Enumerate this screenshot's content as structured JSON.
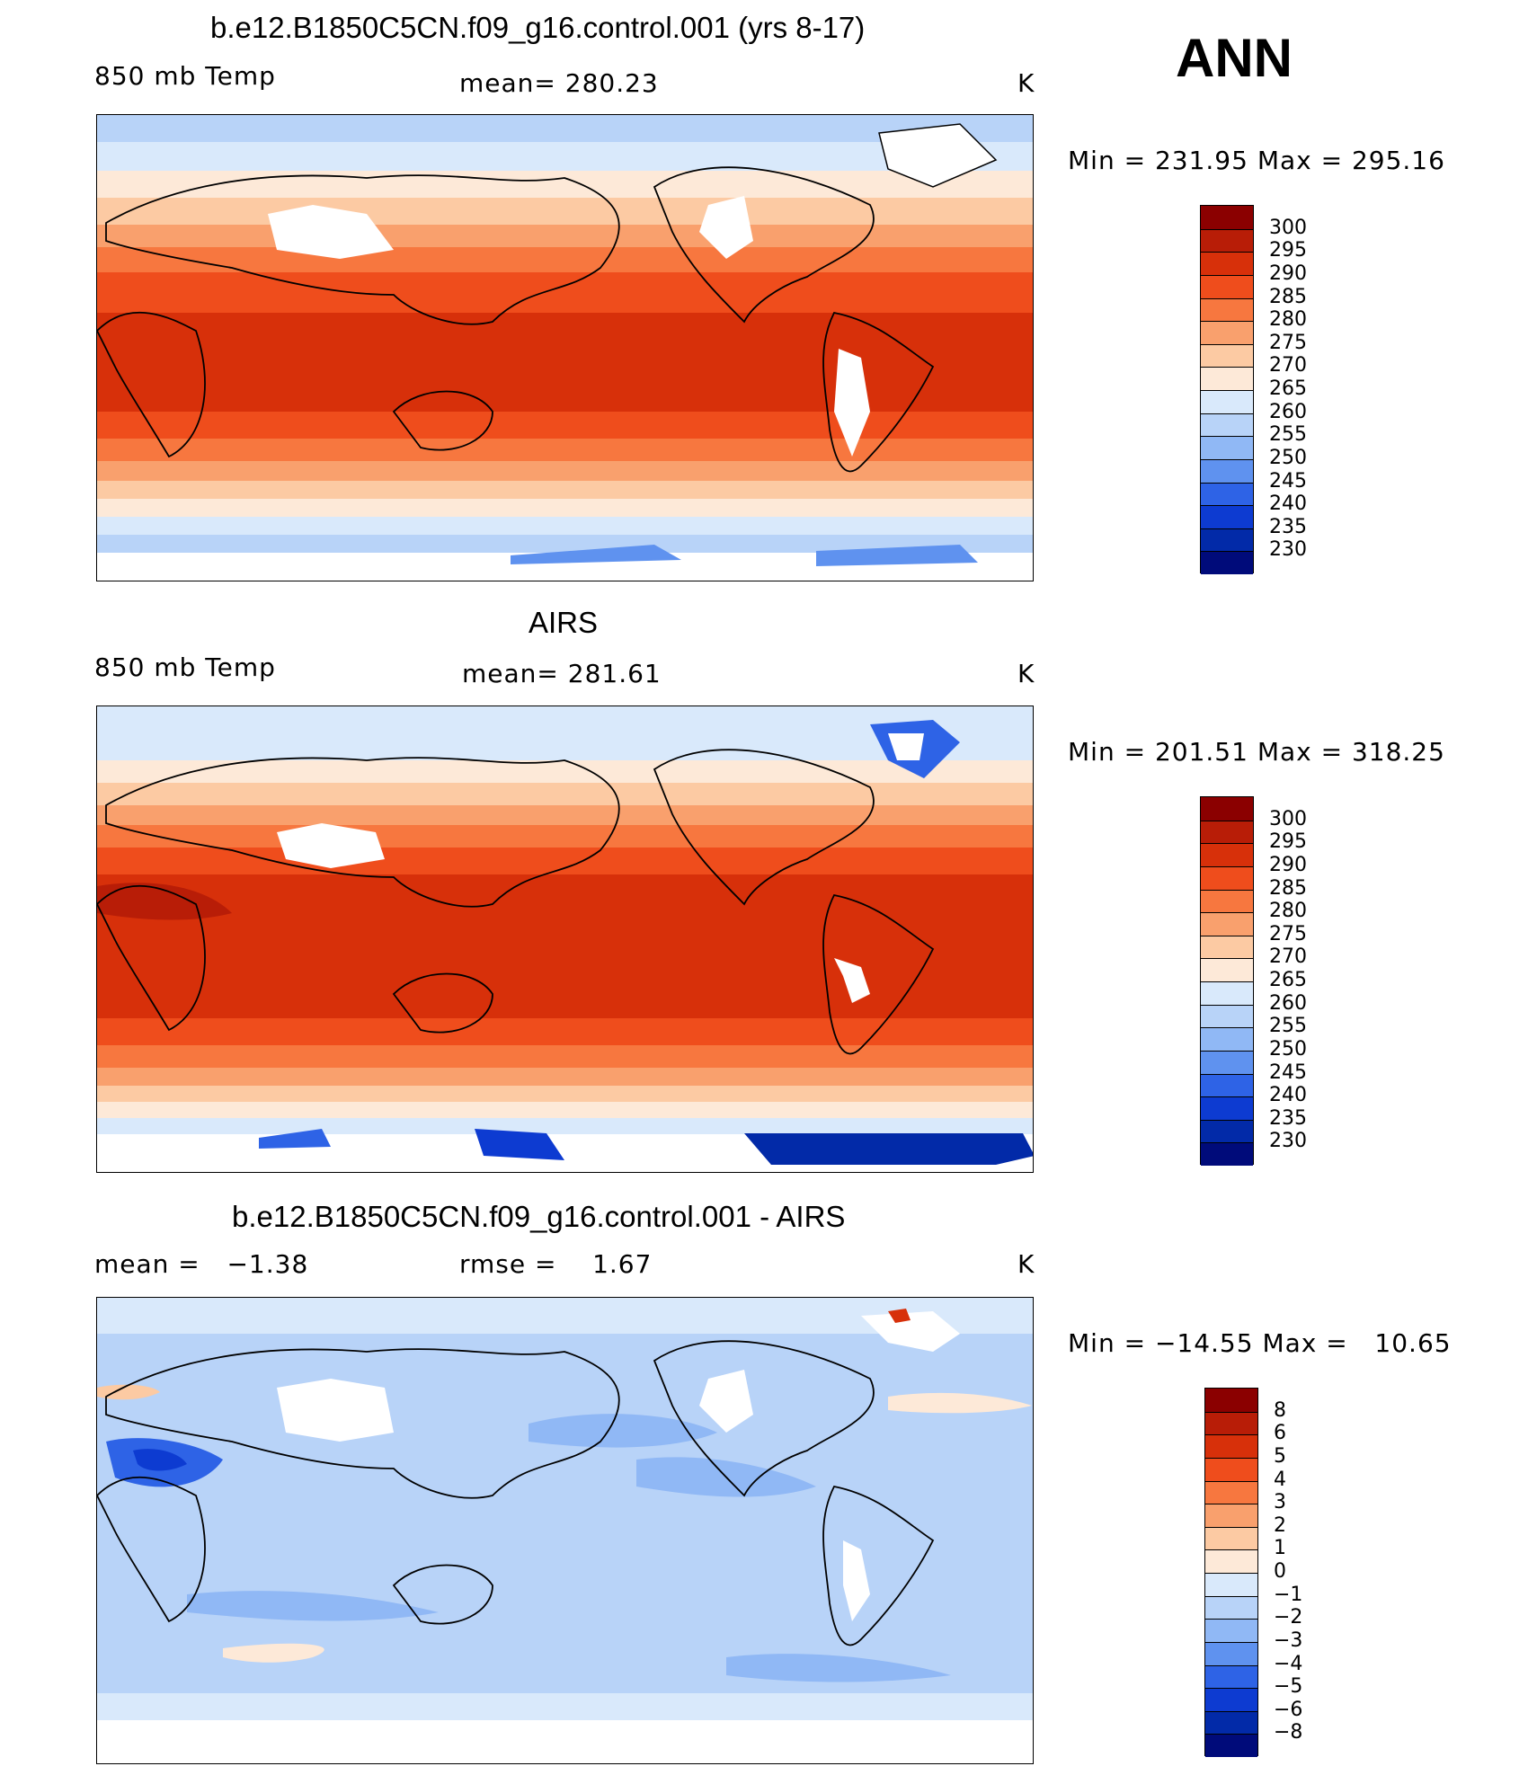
{
  "season": "ANN",
  "panels": [
    {
      "title": "b.e12.B1850C5CN.f09_g16.control.001 (yrs 8-17)",
      "left_label": "850 mb Temp",
      "center_label": "mean= 280.23",
      "units": "K",
      "minmax": "Min = 231.95 Max = 295.16",
      "colorbar": {
        "labels": [
          "300",
          "295",
          "290",
          "285",
          "280",
          "275",
          "270",
          "265",
          "260",
          "255",
          "250",
          "245",
          "240",
          "235",
          "230"
        ],
        "colors": [
          "#8b0000",
          "#b81d07",
          "#d7300a",
          "#ef4d1c",
          "#f7773f",
          "#f9a06d",
          "#fccaa3",
          "#fde9d8",
          "#d9e9fb",
          "#b8d3f8",
          "#90b8f5",
          "#5f92ef",
          "#2e63e6",
          "#0d3bd1",
          "#022aa8",
          "#000b7a"
        ]
      }
    },
    {
      "title": "AIRS",
      "left_label": "850 mb Temp",
      "center_label": "mean= 281.61",
      "units": "K",
      "minmax": "Min = 201.51 Max = 318.25",
      "colorbar": {
        "labels": [
          "300",
          "295",
          "290",
          "285",
          "280",
          "275",
          "270",
          "265",
          "260",
          "255",
          "250",
          "245",
          "240",
          "235",
          "230"
        ],
        "colors": [
          "#8b0000",
          "#b81d07",
          "#d7300a",
          "#ef4d1c",
          "#f7773f",
          "#f9a06d",
          "#fccaa3",
          "#fde9d8",
          "#d9e9fb",
          "#b8d3f8",
          "#90b8f5",
          "#5f92ef",
          "#2e63e6",
          "#0d3bd1",
          "#022aa8",
          "#000b7a"
        ]
      }
    },
    {
      "title": "b.e12.B1850C5CN.f09_g16.control.001 - AIRS",
      "left_label": "mean =   −1.38",
      "center_label": "rmse =    1.67",
      "units": "K",
      "minmax": "Min = −14.55 Max =   10.65",
      "colorbar": {
        "labels": [
          "8",
          "6",
          "5",
          "4",
          "3",
          "2",
          "1",
          "0",
          "−1",
          "−2",
          "−3",
          "−4",
          "−5",
          "−6",
          "−8"
        ],
        "colors": [
          "#8b0000",
          "#b81d07",
          "#d7300a",
          "#ef4d1c",
          "#f7773f",
          "#f9a06d",
          "#fccaa3",
          "#fde9d8",
          "#d9e9fb",
          "#b8d3f8",
          "#90b8f5",
          "#5f92ef",
          "#2e63e6",
          "#0d3bd1",
          "#022aa8",
          "#000b7a"
        ]
      }
    }
  ],
  "palette": {
    "warm_deep": "#d7300a",
    "warm_mid": "#ef4d1c",
    "warm_light": "#f9a06d",
    "warm_pale": "#fccaa3",
    "cream": "#fde9d8",
    "cool_pale": "#d9e9fb",
    "cool_light": "#b8d3f8",
    "cool_mid": "#90b8f5",
    "cool_deep": "#2e63e6",
    "navy": "#000b7a"
  }
}
